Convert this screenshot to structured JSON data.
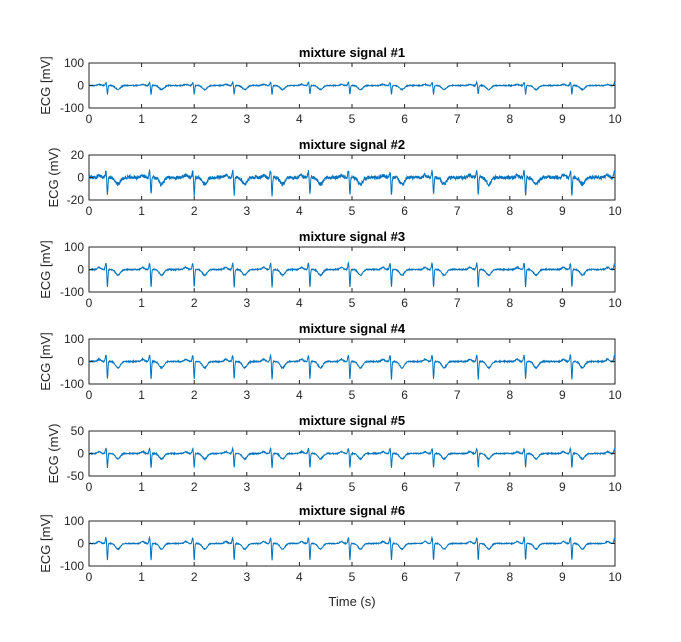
{
  "figure": {
    "xlabel": "Time (s)"
  },
  "chart_data": [
    {
      "type": "line",
      "title": "mixture signal  #1",
      "xlabel": "",
      "ylabel": "ECG [mV]",
      "xlim": [
        0,
        10
      ],
      "ylim": [
        -100,
        100
      ],
      "xticks": [
        0,
        1,
        2,
        3,
        4,
        5,
        6,
        7,
        8,
        9,
        10
      ],
      "yticks": [
        -100,
        0,
        100
      ],
      "beat_times": [
        0.35,
        1.18,
        2.0,
        2.76,
        3.48,
        4.2,
        4.96,
        5.75,
        6.55,
        7.4,
        8.3,
        9.18,
        10.02
      ],
      "r_peak": -40,
      "t_wave": -18,
      "noise": 2,
      "color": "#0072BD"
    },
    {
      "type": "line",
      "title": "mixture signal  #2",
      "xlabel": "",
      "ylabel": "ECG (mV)",
      "xlim": [
        0,
        10
      ],
      "ylim": [
        -20,
        20
      ],
      "xticks": [
        0,
        1,
        2,
        3,
        4,
        5,
        6,
        7,
        8,
        9,
        10
      ],
      "yticks": [
        -20,
        0,
        20
      ],
      "beat_times": [
        0.35,
        1.18,
        2.0,
        2.76,
        3.48,
        4.2,
        4.96,
        5.75,
        6.55,
        7.4,
        8.3,
        9.18,
        10.02
      ],
      "r_peak": -16,
      "t_wave": -6,
      "noise": 1.6,
      "color": "#0072BD"
    },
    {
      "type": "line",
      "title": "mixture signal  #3",
      "xlabel": "",
      "ylabel": "ECG [mV]",
      "xlim": [
        0,
        10
      ],
      "ylim": [
        -100,
        100
      ],
      "xticks": [
        0,
        1,
        2,
        3,
        4,
        5,
        6,
        7,
        8,
        9,
        10
      ],
      "yticks": [
        -100,
        0,
        100
      ],
      "beat_times": [
        0.35,
        1.18,
        2.0,
        2.76,
        3.48,
        4.2,
        4.96,
        5.75,
        6.55,
        7.4,
        8.3,
        9.18,
        10.02
      ],
      "r_peak": -80,
      "t_wave": -25,
      "noise": 2.5,
      "color": "#0072BD"
    },
    {
      "type": "line",
      "title": "mixture signal  #4",
      "xlabel": "",
      "ylabel": "ECG [mV]",
      "xlim": [
        0,
        10
      ],
      "ylim": [
        -100,
        100
      ],
      "xticks": [
        0,
        1,
        2,
        3,
        4,
        5,
        6,
        7,
        8,
        9,
        10
      ],
      "yticks": [
        -100,
        0,
        100
      ],
      "beat_times": [
        0.35,
        1.18,
        2.0,
        2.76,
        3.48,
        4.2,
        4.96,
        5.75,
        6.55,
        7.4,
        8.3,
        9.18,
        10.02
      ],
      "r_peak": -80,
      "t_wave": -28,
      "noise": 2.5,
      "color": "#0072BD"
    },
    {
      "type": "line",
      "title": "mixture signal  #5",
      "xlabel": "",
      "ylabel": "ECG (mV)",
      "xlim": [
        0,
        10
      ],
      "ylim": [
        -50,
        50
      ],
      "xticks": [
        0,
        1,
        2,
        3,
        4,
        5,
        6,
        7,
        8,
        9,
        10
      ],
      "yticks": [
        -50,
        0,
        50
      ],
      "beat_times": [
        0.35,
        1.18,
        2.0,
        2.76,
        3.48,
        4.2,
        4.96,
        5.75,
        6.55,
        7.4,
        8.3,
        9.18,
        10.02
      ],
      "r_peak": -32,
      "t_wave": -12,
      "noise": 1.2,
      "color": "#0072BD"
    },
    {
      "type": "line",
      "title": "mixture signal  #6",
      "xlabel": "",
      "ylabel": "ECG [mV]",
      "xlim": [
        0,
        10
      ],
      "ylim": [
        -100,
        100
      ],
      "xticks": [
        0,
        1,
        2,
        3,
        4,
        5,
        6,
        7,
        8,
        9,
        10
      ],
      "yticks": [
        -100,
        0,
        100
      ],
      "beat_times": [
        0.35,
        1.18,
        2.0,
        2.76,
        3.48,
        4.2,
        4.96,
        5.75,
        6.55,
        7.4,
        8.3,
        9.18,
        10.02
      ],
      "r_peak": -75,
      "t_wave": -25,
      "noise": 2,
      "color": "#0072BD"
    }
  ]
}
